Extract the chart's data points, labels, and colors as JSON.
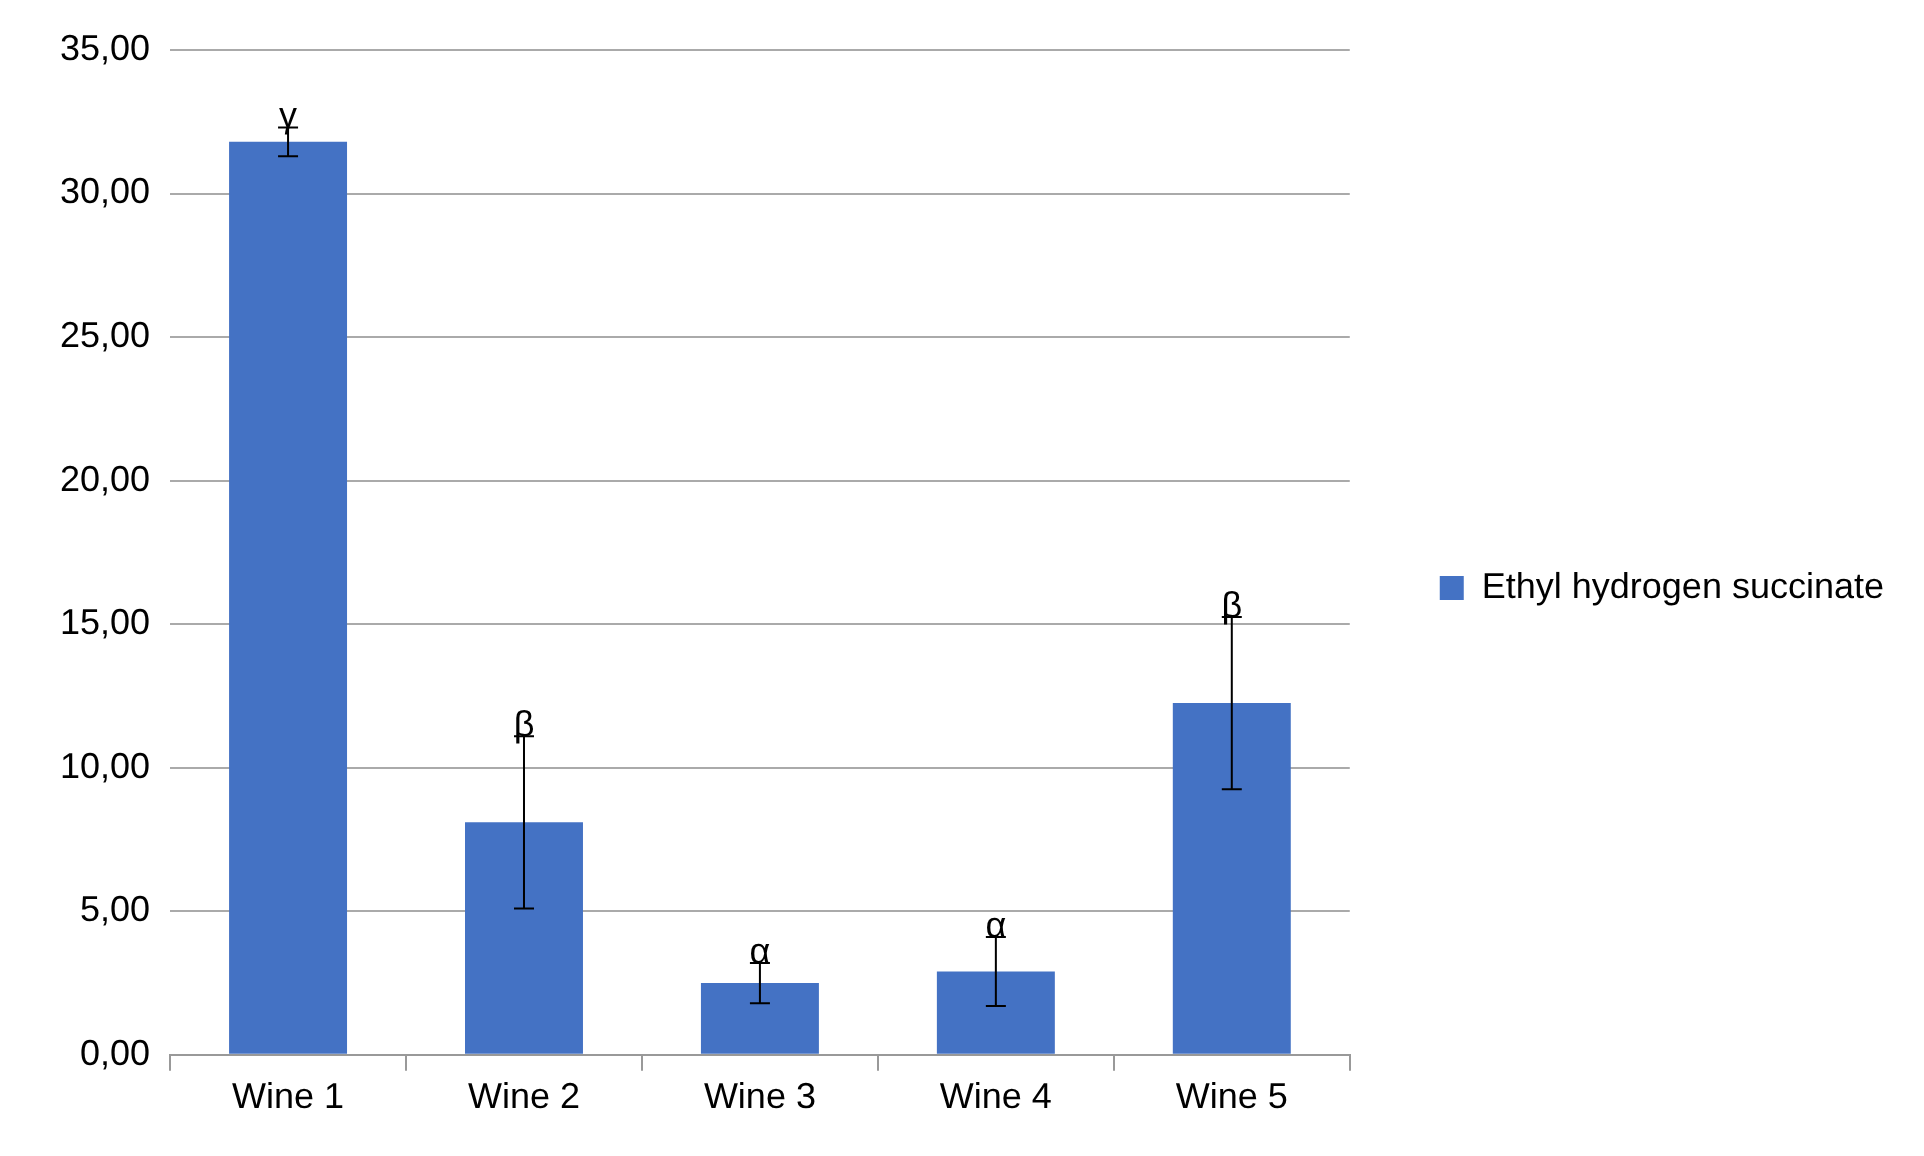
{
  "chart_data": {
    "type": "bar",
    "categories": [
      "Wine 1",
      "Wine 2",
      "Wine 3",
      "Wine 4",
      "Wine 5"
    ],
    "series": [
      {
        "name": "Ethyl hydrogen succinate",
        "color": "#4472c4",
        "values": [
          31.8,
          8.1,
          2.5,
          2.9,
          12.25
        ],
        "errors": [
          0.5,
          3.0,
          0.7,
          1.2,
          3.0
        ]
      }
    ],
    "ylim": [
      0,
      35
    ],
    "yticks": [
      {
        "value": 0,
        "label": "0,00"
      },
      {
        "value": 5,
        "label": "5,00"
      },
      {
        "value": 10,
        "label": "10,00"
      },
      {
        "value": 15,
        "label": "15,00"
      },
      {
        "value": 20,
        "label": "20,00"
      },
      {
        "value": 25,
        "label": "25,00"
      },
      {
        "value": 30,
        "label": "30,00"
      },
      {
        "value": 35,
        "label": "35,00"
      }
    ],
    "annotations": [
      {
        "text": "γ",
        "x": "Wine 1",
        "y": 32.3
      },
      {
        "text": "β",
        "x": "Wine 2",
        "y": 11.1
      },
      {
        "text": "α",
        "x": "Wine 3",
        "y": 3.2
      },
      {
        "text": "α",
        "x": "Wine 4",
        "y": 4.1
      },
      {
        "text": "β",
        "x": "Wine 5",
        "y": 15.25
      }
    ],
    "grid": "y",
    "legend": "right"
  }
}
